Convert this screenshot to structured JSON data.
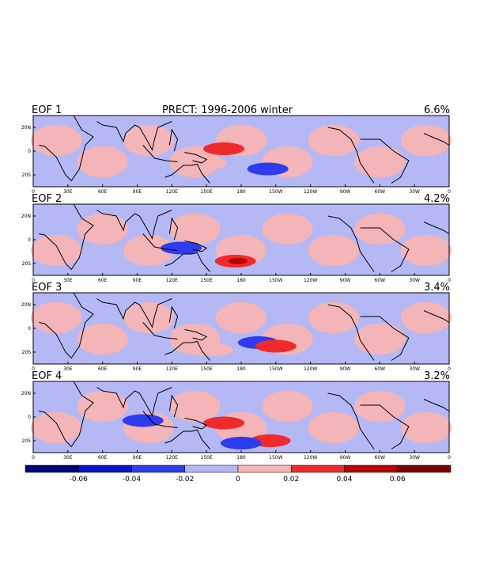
{
  "chart_data": {
    "type": "heatmap",
    "title": "PRECT: 1996-2006 winter",
    "colors": {
      "neg3": "#7a0000",
      "neg_bins": [
        "#00007a",
        "#0a14c8",
        "#2e3cf0",
        "#b4b8f5"
      ],
      "pos_bins": [
        "#f7b4b4",
        "#f02a2a",
        "#b80000",
        "#7a0000"
      ],
      "land": "#000000",
      "frame": "#000000"
    },
    "xaxis": {
      "ticks": [
        "0",
        "30E",
        "60E",
        "90E",
        "120E",
        "150E",
        "180",
        "150W",
        "120W",
        "90W",
        "60W",
        "30W",
        "0"
      ],
      "range": [
        0,
        360
      ]
    },
    "yaxis": {
      "ticks": [
        "20N",
        "0",
        "20S"
      ],
      "range": [
        -30,
        30
      ]
    },
    "panels": [
      {
        "label": "EOF 1",
        "variance": "6.6%",
        "features": [
          {
            "sign": "pos",
            "lon": 165,
            "lat": 2,
            "strength": 2
          },
          {
            "sign": "neg",
            "lon": 203,
            "lat": -15,
            "strength": 2
          },
          {
            "sign": "pos",
            "lon": 150,
            "lat": -10,
            "strength": 1
          }
        ]
      },
      {
        "label": "EOF 2",
        "variance": "4.2%",
        "features": [
          {
            "sign": "pos",
            "lon": 175,
            "lat": -18,
            "strength": 3
          },
          {
            "sign": "neg",
            "lon": 128,
            "lat": -7,
            "strength": 2
          }
        ]
      },
      {
        "label": "EOF 3",
        "variance": "3.4%",
        "features": [
          {
            "sign": "neg",
            "lon": 195,
            "lat": -12,
            "strength": 2
          },
          {
            "sign": "pos",
            "lon": 210,
            "lat": -15,
            "strength": 2
          },
          {
            "sign": "pos",
            "lon": 155,
            "lat": -18,
            "strength": 1
          }
        ]
      },
      {
        "label": "EOF 4",
        "variance": "3.2%",
        "features": [
          {
            "sign": "pos",
            "lon": 165,
            "lat": -5,
            "strength": 2
          },
          {
            "sign": "pos",
            "lon": 205,
            "lat": -20,
            "strength": 2
          },
          {
            "sign": "neg",
            "lon": 180,
            "lat": -22,
            "strength": 2
          },
          {
            "sign": "neg",
            "lon": 95,
            "lat": -3,
            "strength": 2
          }
        ]
      }
    ],
    "colorbar": {
      "tick_labels": [
        "-0.06",
        "-0.04",
        "-0.02",
        "0",
        "0.02",
        "0.04",
        "0.06"
      ],
      "levels": [
        -0.08,
        -0.06,
        -0.04,
        -0.02,
        0,
        0.02,
        0.04,
        0.06,
        0.08
      ]
    }
  }
}
